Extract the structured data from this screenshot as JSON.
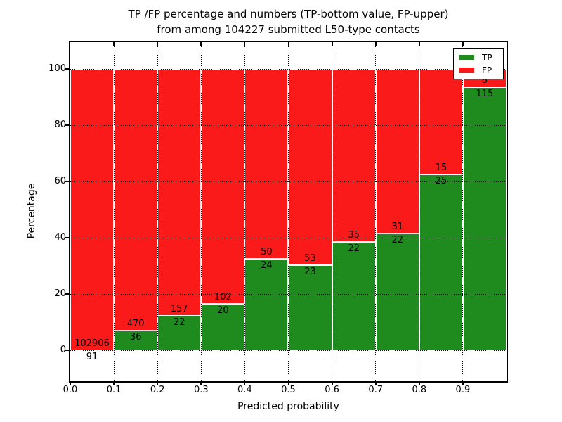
{
  "title": {
    "line1": "TP /FP percentage and numbers (TP-bottom value, FP-upper)",
    "line2": "from among 104227 submitted L50-type contacts"
  },
  "axes": {
    "xlabel": "Predicted probability",
    "ylabel": "Percentage",
    "x_tick_labels": [
      "0.0",
      "0.1",
      "0.2",
      "0.3",
      "0.4",
      "0.5",
      "0.6",
      "0.7",
      "0.8",
      "0.9"
    ],
    "y_tick_labels": [
      "0",
      "20",
      "40",
      "60",
      "80",
      "100"
    ],
    "y_tick_values": [
      0,
      20,
      40,
      60,
      80,
      100
    ]
  },
  "legend": {
    "position": "upper right",
    "items": [
      {
        "label": "TP",
        "color": "#1f8b1f"
      },
      {
        "label": "FP",
        "color": "#fa1a1a"
      }
    ]
  },
  "colors": {
    "tp_bar": "#1f8b1f",
    "fp_bar": "#fa1a1a",
    "bar_edge": "#ffffff",
    "grid": "#000000"
  },
  "chart_data": {
    "type": "bar",
    "stacked": true,
    "normalized_to_percent": true,
    "title": "TP /FP percentage and numbers (TP-bottom value, FP-upper) from among 104227 submitted L50-type contacts",
    "xlabel": "Predicted probability",
    "ylabel": "Percentage",
    "total_contacts": 104227,
    "bins": [
      "0.0-0.1",
      "0.1-0.2",
      "0.2-0.3",
      "0.3-0.4",
      "0.4-0.5",
      "0.5-0.6",
      "0.6-0.7",
      "0.7-0.8",
      "0.8-0.9",
      "0.9-1.0"
    ],
    "x_bin_start": [
      0.0,
      0.1,
      0.2,
      0.3,
      0.4,
      0.5,
      0.6,
      0.7,
      0.8,
      0.9
    ],
    "series": [
      {
        "name": "TP",
        "counts": [
          91,
          36,
          22,
          20,
          24,
          23,
          22,
          22,
          25,
          115
        ]
      },
      {
        "name": "FP",
        "counts": [
          102906,
          470,
          157,
          102,
          50,
          53,
          35,
          31,
          15,
          8
        ]
      }
    ],
    "tp_percent": [
      0.09,
      7.11,
      12.29,
      16.39,
      32.43,
      30.26,
      38.6,
      41.51,
      62.5,
      93.5
    ],
    "ylim_shown": [
      0,
      100
    ],
    "grid": true,
    "legend_position": "upper right"
  }
}
